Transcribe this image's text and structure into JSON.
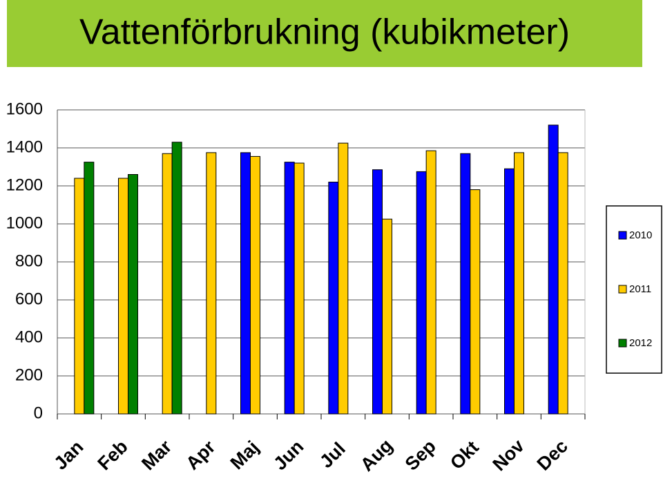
{
  "chart_data": {
    "type": "bar",
    "title": "Vattenförbrukning (kubikmeter)",
    "categories": [
      "Jan",
      "Feb",
      "Mar",
      "Apr",
      "Maj",
      "Jun",
      "Jul",
      "Aug",
      "Sep",
      "Okt",
      "Nov",
      "Dec"
    ],
    "series": [
      {
        "name": "2010",
        "color": "#0000ff",
        "values": [
          null,
          null,
          null,
          null,
          1375,
          1325,
          1220,
          1285,
          1275,
          1370,
          1290,
          1520
        ]
      },
      {
        "name": "2011",
        "color": "#ffcc00",
        "values": [
          1240,
          1240,
          1370,
          1375,
          1355,
          1320,
          1425,
          1025,
          1385,
          1180,
          1375,
          1375
        ]
      },
      {
        "name": "2012",
        "color": "#008000",
        "values": [
          1325,
          1260,
          1430,
          null,
          null,
          null,
          null,
          null,
          null,
          null,
          null,
          null
        ]
      }
    ],
    "ylim": [
      0,
      1600
    ],
    "yticks": [
      0,
      200,
      400,
      600,
      800,
      1000,
      1200,
      1400,
      1600
    ],
    "grid": true,
    "legend": "right"
  }
}
